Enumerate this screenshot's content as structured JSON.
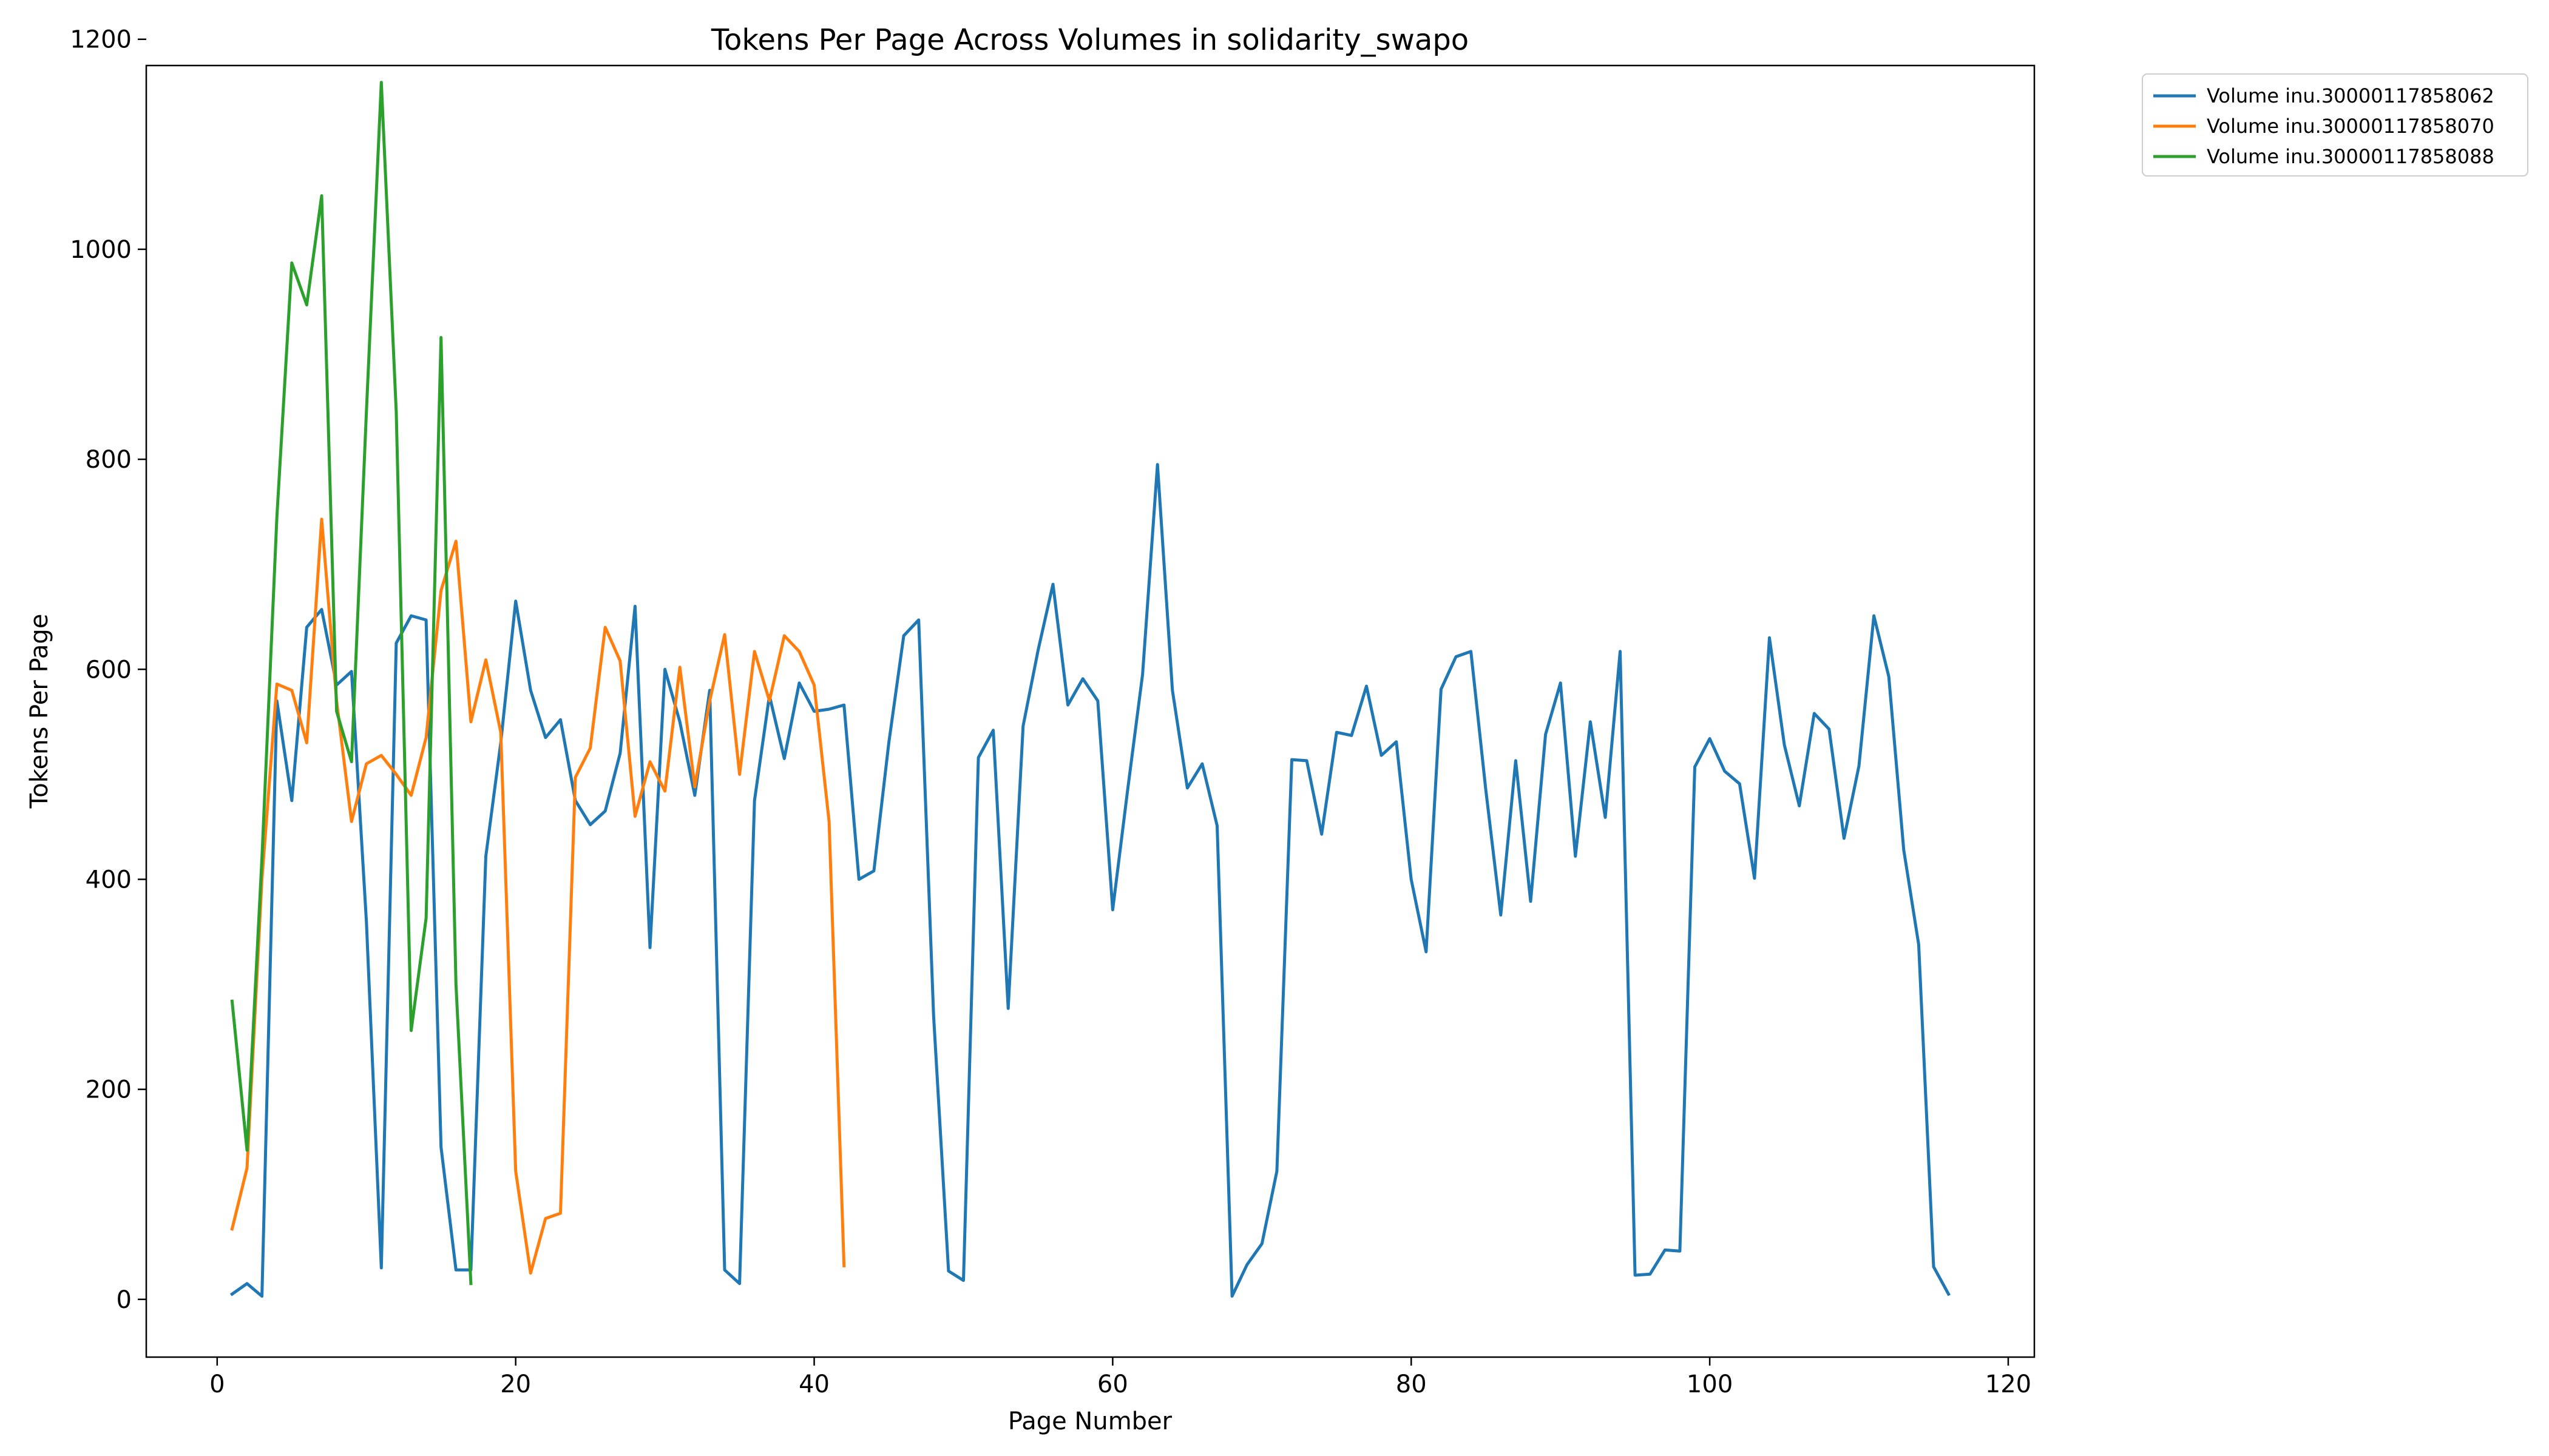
{
  "chart_data": {
    "type": "line",
    "title": "Tokens Per Page Across Volumes in solidarity_swapo",
    "xlabel": "Page Number",
    "ylabel": "Tokens Per Page",
    "xlim": [
      -4.75,
      121.75
    ],
    "ylim": [
      -55,
      1175
    ],
    "xticks": [
      0,
      20,
      40,
      60,
      80,
      100,
      120
    ],
    "yticks": [
      0,
      200,
      400,
      600,
      800,
      1000,
      1200
    ],
    "grid": false,
    "legend_position": "outside-top-right",
    "series": [
      {
        "name": "Volume inu.30000117858062",
        "color": "#1f77b4",
        "values": [
          5,
          15,
          3,
          570,
          475,
          640,
          657,
          585,
          598,
          360,
          30,
          625,
          651,
          647,
          145,
          28,
          28,
          422,
          530,
          665,
          580,
          535,
          552,
          475,
          452,
          465,
          520,
          660,
          335,
          600,
          550,
          480,
          580,
          28,
          15,
          475,
          575,
          515,
          587,
          560,
          562,
          566,
          400,
          408,
          530,
          632,
          647,
          270,
          27,
          18,
          516,
          542,
          277,
          546,
          618,
          681,
          566,
          591,
          570,
          371,
          485,
          595,
          795,
          580,
          487,
          510,
          451,
          3,
          33,
          53,
          122,
          514,
          513,
          443,
          540,
          537,
          584,
          518,
          531,
          400,
          331,
          581,
          612,
          617,
          485,
          366,
          513,
          379,
          538,
          587,
          422,
          550,
          459,
          617,
          23,
          24,
          47,
          46,
          507,
          534,
          503,
          491,
          401,
          630,
          528,
          470,
          558,
          543,
          439,
          508,
          651,
          593,
          428,
          338,
          31,
          5
        ]
      },
      {
        "name": "Volume inu.30000117858070",
        "color": "#ff7f0e",
        "values": [
          67,
          125,
          400,
          586,
          580,
          530,
          743,
          570,
          455,
          510,
          518,
          500,
          480,
          535,
          675,
          722,
          550,
          609,
          540,
          122,
          25,
          77,
          82,
          497,
          525,
          640,
          608,
          460,
          512,
          484,
          602,
          488,
          570,
          633,
          500,
          617,
          570,
          632,
          617,
          585,
          455,
          32
        ]
      },
      {
        "name": "Volume inu.30000117858088",
        "color": "#2ca02c",
        "values": [
          284,
          142,
          420,
          745,
          987,
          947,
          1051,
          560,
          512,
          845,
          1159,
          845,
          256,
          363,
          916,
          300,
          15
        ]
      }
    ]
  }
}
